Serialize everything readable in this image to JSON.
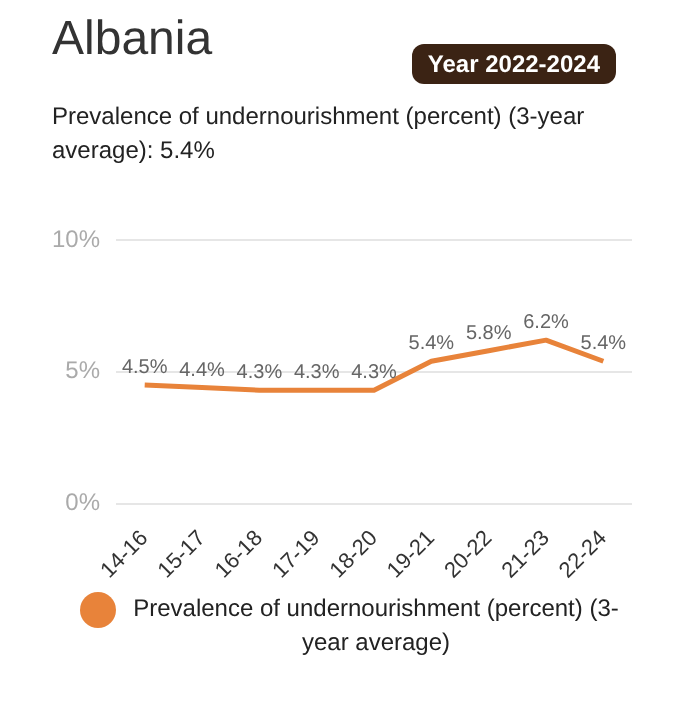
{
  "chart_data": {
    "type": "line",
    "title": "Albania",
    "subtitle": "Prevalence of undernourishment (percent) (3-year average): 5.4%",
    "annotations": [
      "Year 2022-2024"
    ],
    "categories": [
      "14-16",
      "15-17",
      "16-18",
      "17-19",
      "18-20",
      "19-21",
      "20-22",
      "21-23",
      "22-24"
    ],
    "series": [
      {
        "name": "Prevalence of undernourishment (percent) (3-year average)",
        "color": "#e8833a",
        "values": [
          4.5,
          4.4,
          4.3,
          4.3,
          4.3,
          5.4,
          5.8,
          6.2,
          5.4
        ],
        "value_labels": [
          "4.5%",
          "4.4%",
          "4.3%",
          "4.3%",
          "4.3%",
          "5.4%",
          "5.8%",
          "6.2%",
          "5.4%"
        ]
      }
    ],
    "ylim": [
      0,
      10
    ],
    "yticks": [
      {
        "value": 0,
        "label": "0%"
      },
      {
        "value": 5,
        "label": "5%"
      },
      {
        "value": 10,
        "label": "10%"
      }
    ],
    "grid": "y",
    "legend": "bottom",
    "marker": "none",
    "line_style": "solid"
  }
}
